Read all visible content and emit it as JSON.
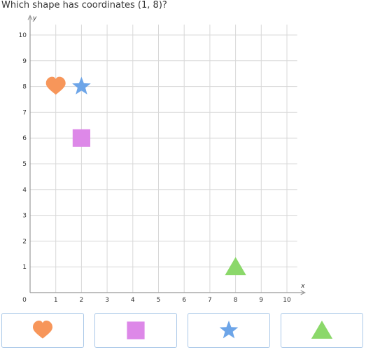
{
  "question": "Which shape has coordinates (1, 8)?",
  "axes": {
    "x_label": "x",
    "y_label": "y",
    "x_ticks": [
      "1",
      "2",
      "3",
      "4",
      "5",
      "6",
      "7",
      "8",
      "9",
      "10"
    ],
    "y_ticks": [
      "1",
      "2",
      "3",
      "4",
      "5",
      "6",
      "7",
      "8",
      "9",
      "10"
    ],
    "origin_label": "0"
  },
  "shapes": [
    {
      "name": "heart",
      "x": 1,
      "y": 8,
      "color": "#f7965a"
    },
    {
      "name": "star",
      "x": 2,
      "y": 8,
      "color": "#6da5e8"
    },
    {
      "name": "square",
      "x": 2,
      "y": 6,
      "color": "#dd88e8"
    },
    {
      "name": "triangle",
      "x": 8,
      "y": 1,
      "color": "#8bd86a"
    }
  ],
  "answer_choices": [
    {
      "shape": "heart",
      "color": "#f7965a"
    },
    {
      "shape": "square",
      "color": "#dd88e8"
    },
    {
      "shape": "star",
      "color": "#6da5e8"
    },
    {
      "shape": "triangle",
      "color": "#8bd86a"
    }
  ],
  "colors": {
    "grid": "#d8d8d8",
    "axis": "#999999",
    "choice_border": "#aac8e8"
  }
}
